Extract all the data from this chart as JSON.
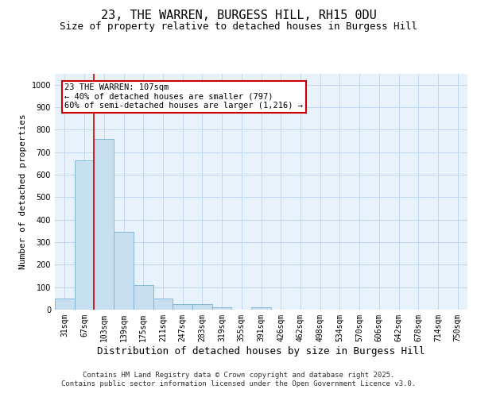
{
  "title_line1": "23, THE WARREN, BURGESS HILL, RH15 0DU",
  "title_line2": "Size of property relative to detached houses in Burgess Hill",
  "xlabel": "Distribution of detached houses by size in Burgess Hill",
  "ylabel": "Number of detached properties",
  "categories": [
    "31sqm",
    "67sqm",
    "103sqm",
    "139sqm",
    "175sqm",
    "211sqm",
    "247sqm",
    "283sqm",
    "319sqm",
    "355sqm",
    "391sqm",
    "426sqm",
    "462sqm",
    "498sqm",
    "534sqm",
    "570sqm",
    "606sqm",
    "642sqm",
    "678sqm",
    "714sqm",
    "750sqm"
  ],
  "values": [
    50,
    665,
    760,
    345,
    110,
    50,
    25,
    25,
    10,
    0,
    10,
    0,
    0,
    0,
    0,
    0,
    0,
    0,
    0,
    0,
    0
  ],
  "bar_color": "#c8dff0",
  "bar_edgecolor": "#7ab0d4",
  "vline_x": 1.5,
  "vline_color": "#cc0000",
  "annotation_text": "23 THE WARREN: 107sqm\n← 40% of detached houses are smaller (797)\n60% of semi-detached houses are larger (1,216) →",
  "annotation_box_color": "#cc0000",
  "ylim": [
    0,
    1050
  ],
  "yticks": [
    0,
    100,
    200,
    300,
    400,
    500,
    600,
    700,
    800,
    900,
    1000
  ],
  "grid_color": "#c0d8ee",
  "background_color": "#e8f2fa",
  "footer_line1": "Contains HM Land Registry data © Crown copyright and database right 2025.",
  "footer_line2": "Contains public sector information licensed under the Open Government Licence v3.0.",
  "title_fontsize": 11,
  "subtitle_fontsize": 9,
  "tick_fontsize": 7,
  "ylabel_fontsize": 8,
  "xlabel_fontsize": 9
}
